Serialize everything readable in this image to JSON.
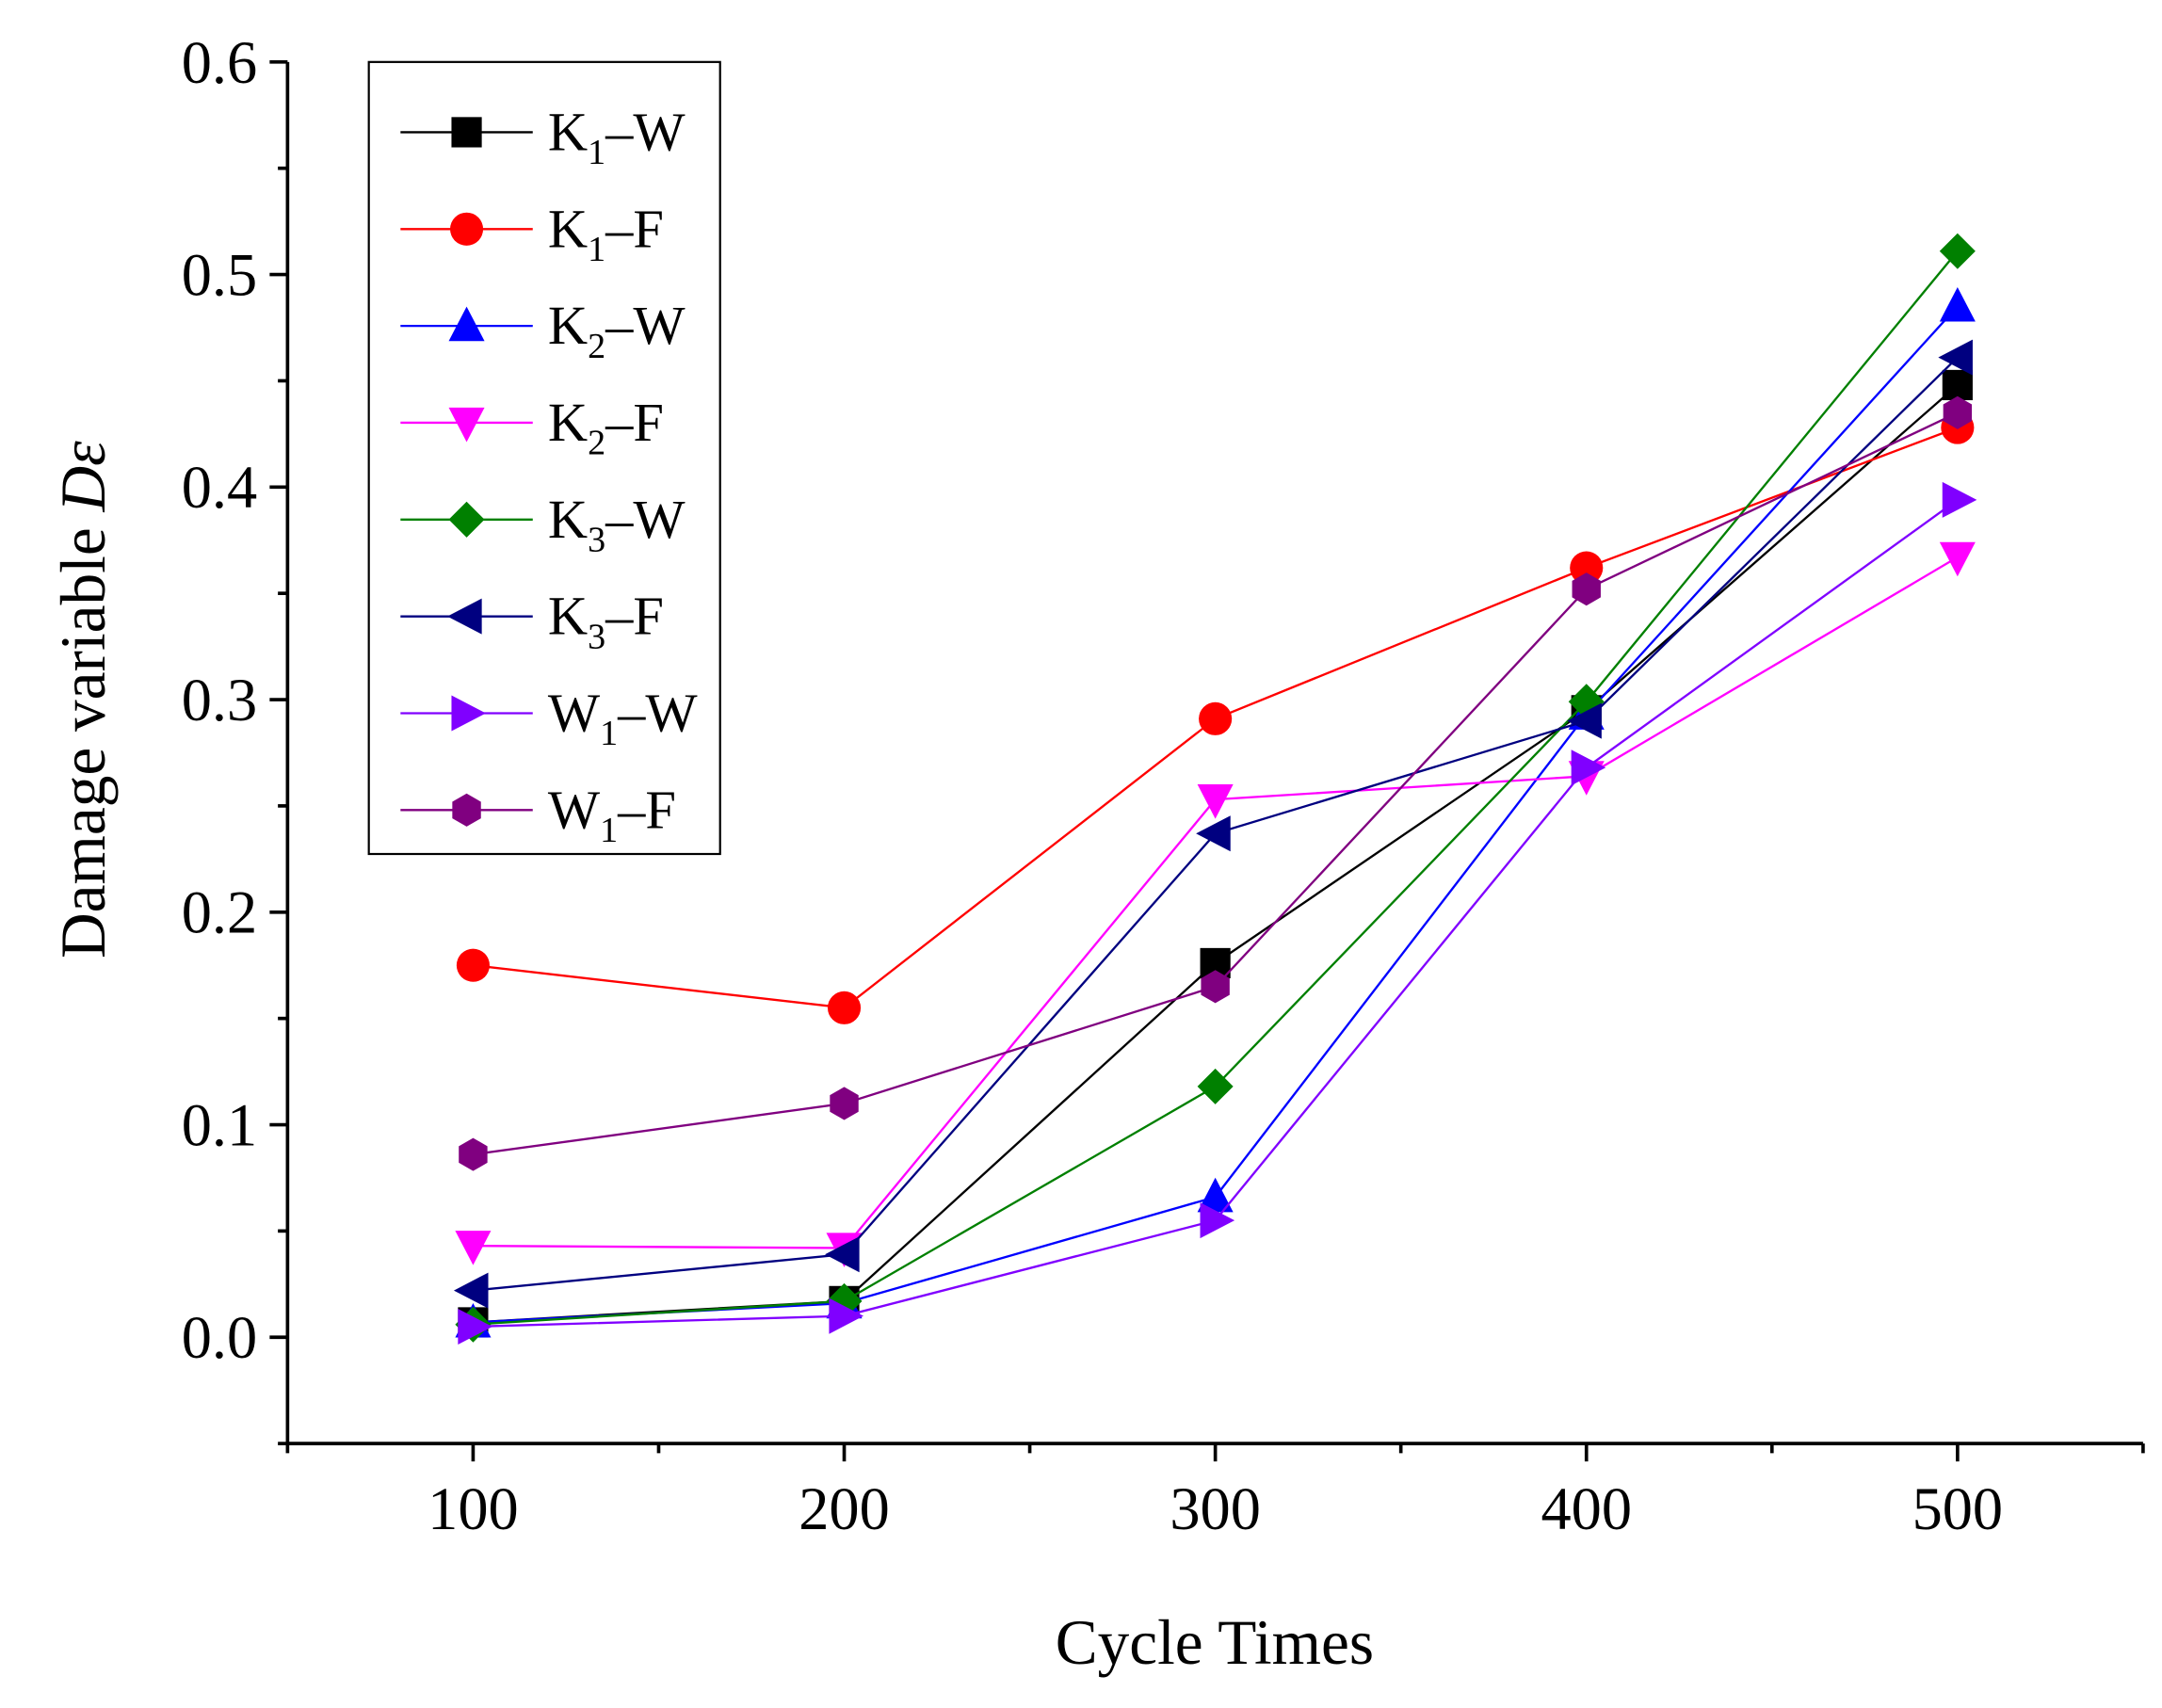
{
  "chart_data": {
    "type": "line",
    "title": "",
    "xlabel": "Cycle Times",
    "ylabel": "Damage variable ",
    "ylabel_symbol": "Dε",
    "x": [
      100,
      200,
      300,
      400,
      500
    ],
    "xlim": [
      50,
      550
    ],
    "ylim": [
      -0.05,
      0.6
    ],
    "xticks": [
      "100",
      "200",
      "300",
      "400",
      "500"
    ],
    "yticks": [
      "0.0",
      "0.1",
      "0.2",
      "0.3",
      "0.4",
      "0.5",
      "0.6"
    ],
    "grid": false,
    "legend_position": "top-left",
    "series": [
      {
        "name": "K1–W",
        "base": "K",
        "sub": "1",
        "suffix": "–W",
        "color": "#000000",
        "marker": "square",
        "values": [
          0.007,
          0.017,
          0.176,
          0.295,
          0.448
        ]
      },
      {
        "name": "K1–F",
        "base": "K",
        "sub": "1",
        "suffix": "–F",
        "color": "#ff0000",
        "marker": "circle",
        "values": [
          0.175,
          0.155,
          0.291,
          0.362,
          0.428
        ]
      },
      {
        "name": "K2–W",
        "base": "K",
        "sub": "2",
        "suffix": "–W",
        "color": "#0000ff",
        "marker": "triangle-up",
        "values": [
          0.007,
          0.016,
          0.066,
          0.293,
          0.485
        ]
      },
      {
        "name": "K2–F",
        "base": "K",
        "sub": "2",
        "suffix": "–F",
        "color": "#ff00ff",
        "marker": "triangle-down",
        "values": [
          0.043,
          0.042,
          0.253,
          0.264,
          0.367
        ]
      },
      {
        "name": "K3–W",
        "base": "K",
        "sub": "3",
        "suffix": "–W",
        "color": "#008000",
        "marker": "diamond",
        "values": [
          0.006,
          0.017,
          0.118,
          0.299,
          0.511
        ]
      },
      {
        "name": "K3–F",
        "base": "K",
        "sub": "3",
        "suffix": "–F",
        "color": "#000080",
        "marker": "triangle-left",
        "values": [
          0.022,
          0.039,
          0.237,
          0.29,
          0.461
        ]
      },
      {
        "name": "W1–W",
        "base": "W",
        "sub": "1",
        "suffix": "–W",
        "color": "#8000ff",
        "marker": "triangle-right",
        "values": [
          0.005,
          0.01,
          0.055,
          0.268,
          0.394
        ]
      },
      {
        "name": "W1–F",
        "base": "W",
        "sub": "1",
        "suffix": "–F",
        "color": "#800080",
        "marker": "hexagon",
        "values": [
          0.086,
          0.11,
          0.165,
          0.352,
          0.435
        ]
      }
    ]
  }
}
